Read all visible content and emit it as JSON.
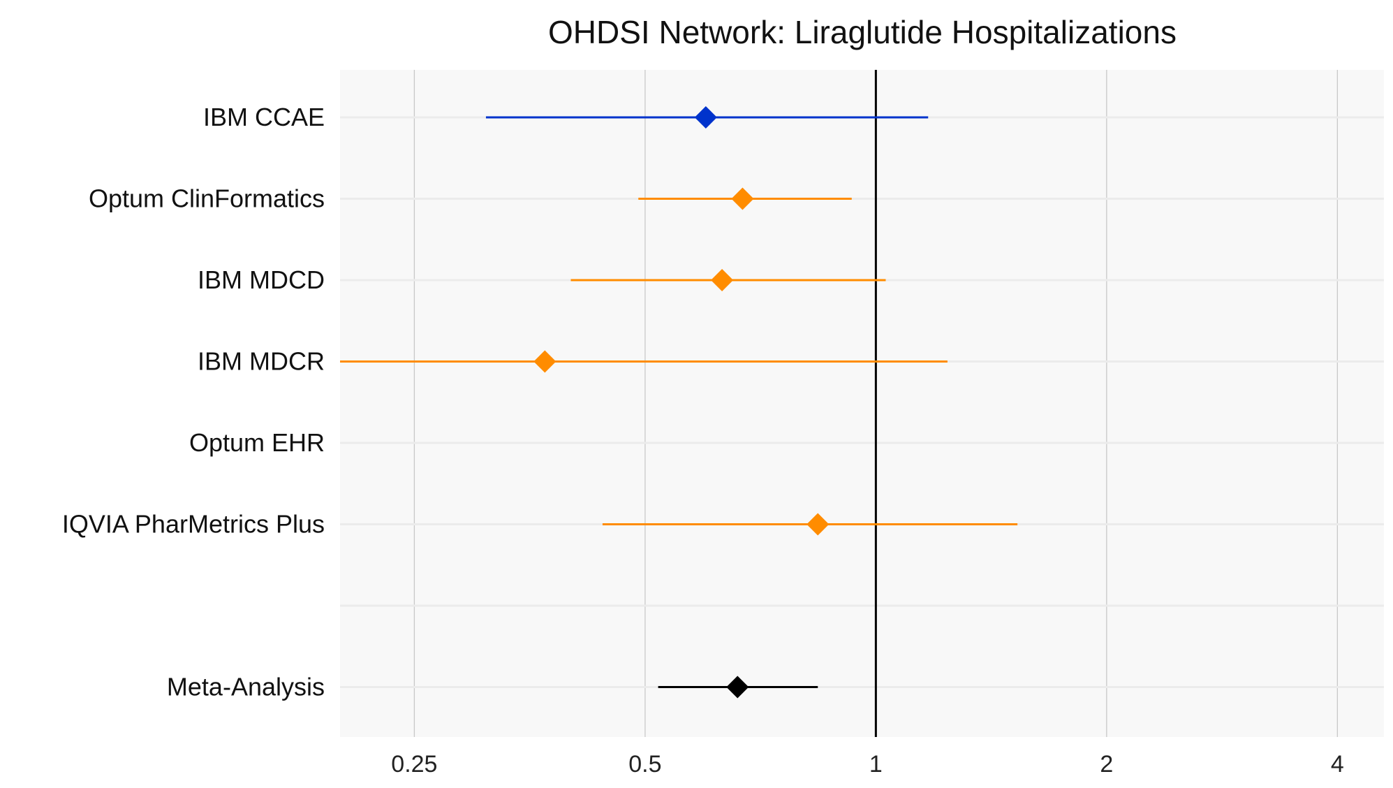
{
  "chart_data": {
    "type": "forest",
    "title": "OHDSI Network: Liraglutide Hospitalizations",
    "x_scale": "log",
    "xlim": [
      0.2,
      4.6
    ],
    "x_ticks": [
      0.25,
      0.5,
      1,
      2,
      4
    ],
    "x_tick_labels": [
      "0.25",
      "0.5",
      "1",
      "2",
      "4"
    ],
    "reference_line": 1,
    "grid": true,
    "rows": [
      {
        "label": "IBM CCAE",
        "estimate": 0.6,
        "lower": 0.31,
        "upper": 1.17,
        "color": "#0033cc"
      },
      {
        "label": "Optum ClinFormatics",
        "estimate": 0.67,
        "lower": 0.49,
        "upper": 0.93,
        "color": "#ff8c00"
      },
      {
        "label": "IBM MDCD",
        "estimate": 0.63,
        "lower": 0.4,
        "upper": 1.03,
        "color": "#ff8c00"
      },
      {
        "label": "IBM MDCR",
        "estimate": 0.37,
        "lower": 0.2,
        "upper": 1.24,
        "color": "#ff8c00"
      },
      {
        "label": "Optum EHR",
        "estimate": null,
        "lower": null,
        "upper": null,
        "color": "#ff8c00"
      },
      {
        "label": "IQVIA PharMetrics Plus",
        "estimate": 0.84,
        "lower": 0.44,
        "upper": 1.53,
        "color": "#ff8c00"
      },
      {
        "label": "",
        "estimate": null,
        "lower": null,
        "upper": null,
        "color": "#000000"
      },
      {
        "label": "Meta-Analysis",
        "estimate": 0.66,
        "lower": 0.52,
        "upper": 0.84,
        "color": "#000000"
      }
    ]
  }
}
